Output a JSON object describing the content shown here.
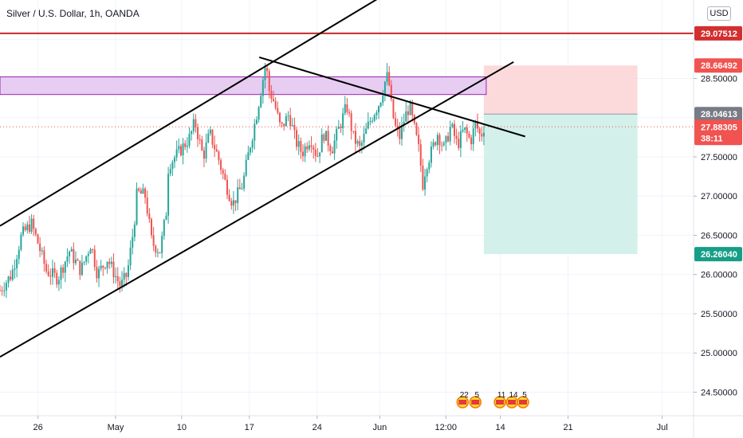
{
  "header": {
    "symbol_title": "Silver / U.S. Dollar, 1h, OANDA",
    "currency": "USD"
  },
  "chart_data": {
    "type": "candlestick",
    "title": "Silver / U.S. Dollar, 1h, OANDA",
    "y_axis": {
      "scale": "linear",
      "range": [
        24.2,
        29.5
      ],
      "ticks": [
        "24.50000",
        "25.00000",
        "25.50000",
        "26.00000",
        "26.50000",
        "27.00000",
        "27.50000",
        "28.50000"
      ],
      "partial_top_tick": "29"
    },
    "x_axis": {
      "range": [
        -1.0,
        41.0
      ],
      "ticks": [
        {
          "label": "26",
          "x": 1.3
        },
        {
          "label": "May",
          "x": 6.0
        },
        {
          "label": "10",
          "x": 10.0
        },
        {
          "label": "17",
          "x": 14.1
        },
        {
          "label": "24",
          "x": 18.2
        },
        {
          "label": "Jun",
          "x": 22.0
        },
        {
          "label": "12:00",
          "x": 26.0
        },
        {
          "label": "14",
          "x": 29.3
        },
        {
          "label": "21",
          "x": 33.4
        },
        {
          "label": "Jul",
          "x": 39.1
        }
      ]
    },
    "price_path": [
      {
        "x": -1.0,
        "y": 25.8
      },
      {
        "x": -0.3,
        "y": 26.0
      },
      {
        "x": 0.3,
        "y": 26.5
      },
      {
        "x": 0.9,
        "y": 26.65
      },
      {
        "x": 1.3,
        "y": 26.4
      },
      {
        "x": 1.8,
        "y": 26.05
      },
      {
        "x": 2.5,
        "y": 25.95
      },
      {
        "x": 3.2,
        "y": 26.3
      },
      {
        "x": 3.9,
        "y": 26.05
      },
      {
        "x": 4.5,
        "y": 26.4
      },
      {
        "x": 4.9,
        "y": 26.0
      },
      {
        "x": 5.5,
        "y": 26.2
      },
      {
        "x": 6.3,
        "y": 25.85
      },
      {
        "x": 6.7,
        "y": 26.0
      },
      {
        "x": 7.1,
        "y": 26.6
      },
      {
        "x": 7.3,
        "y": 27.05
      },
      {
        "x": 7.8,
        "y": 27.0
      },
      {
        "x": 8.2,
        "y": 26.4
      },
      {
        "x": 8.7,
        "y": 26.3
      },
      {
        "x": 9.1,
        "y": 26.85
      },
      {
        "x": 9.2,
        "y": 27.4
      },
      {
        "x": 9.8,
        "y": 27.55
      },
      {
        "x": 10.5,
        "y": 27.75
      },
      {
        "x": 10.8,
        "y": 27.95
      },
      {
        "x": 11.3,
        "y": 27.5
      },
      {
        "x": 11.7,
        "y": 27.8
      },
      {
        "x": 12.2,
        "y": 27.5
      },
      {
        "x": 12.6,
        "y": 27.2
      },
      {
        "x": 13.1,
        "y": 26.9
      },
      {
        "x": 13.7,
        "y": 27.15
      },
      {
        "x": 14.1,
        "y": 27.6
      },
      {
        "x": 14.5,
        "y": 28.0
      },
      {
        "x": 14.8,
        "y": 28.35
      },
      {
        "x": 15.1,
        "y": 28.7
      },
      {
        "x": 15.3,
        "y": 28.35
      },
      {
        "x": 15.6,
        "y": 28.2
      },
      {
        "x": 16.0,
        "y": 27.85
      },
      {
        "x": 16.5,
        "y": 28.05
      },
      {
        "x": 16.9,
        "y": 27.7
      },
      {
        "x": 17.3,
        "y": 27.55
      },
      {
        "x": 17.8,
        "y": 27.75
      },
      {
        "x": 18.2,
        "y": 27.5
      },
      {
        "x": 18.6,
        "y": 27.8
      },
      {
        "x": 19.1,
        "y": 27.6
      },
      {
        "x": 19.5,
        "y": 27.85
      },
      {
        "x": 20.0,
        "y": 28.15
      },
      {
        "x": 20.4,
        "y": 27.75
      },
      {
        "x": 20.8,
        "y": 27.6
      },
      {
        "x": 21.2,
        "y": 27.85
      },
      {
        "x": 21.6,
        "y": 28.05
      },
      {
        "x": 22.0,
        "y": 28.2
      },
      {
        "x": 22.3,
        "y": 28.45
      },
      {
        "x": 22.5,
        "y": 28.55
      },
      {
        "x": 22.7,
        "y": 28.15
      },
      {
        "x": 22.9,
        "y": 27.9
      },
      {
        "x": 23.2,
        "y": 27.75
      },
      {
        "x": 23.5,
        "y": 28.0
      },
      {
        "x": 23.8,
        "y": 28.15
      },
      {
        "x": 24.1,
        "y": 27.85
      },
      {
        "x": 24.4,
        "y": 27.55
      },
      {
        "x": 24.6,
        "y": 27.15
      },
      {
        "x": 24.8,
        "y": 27.4
      },
      {
        "x": 25.1,
        "y": 27.55
      },
      {
        "x": 25.5,
        "y": 27.8
      },
      {
        "x": 25.9,
        "y": 27.6
      },
      {
        "x": 26.3,
        "y": 27.9
      },
      {
        "x": 26.7,
        "y": 27.65
      },
      {
        "x": 27.1,
        "y": 27.85
      },
      {
        "x": 27.5,
        "y": 27.7
      },
      {
        "x": 27.8,
        "y": 27.93
      },
      {
        "x": 28.1,
        "y": 27.75
      },
      {
        "x": 28.3,
        "y": 27.88
      }
    ],
    "pattern_lines": [
      {
        "name": "channel-upper",
        "from": {
          "x": -1.0,
          "y": 26.62
        },
        "to": {
          "x": 25.7,
          "y": 30.0
        }
      },
      {
        "name": "channel-lower",
        "from": {
          "x": -1.0,
          "y": 24.95
        },
        "to": {
          "x": 30.1,
          "y": 28.71
        }
      },
      {
        "name": "descending-trendline",
        "from": {
          "x": 14.7,
          "y": 28.77
        },
        "to": {
          "x": 30.8,
          "y": 27.76
        }
      }
    ],
    "resistance_zone": {
      "y_bottom": 28.295,
      "y_top": 28.52
    },
    "horizontal_level": {
      "y": 29.07512,
      "color": "#c62828"
    },
    "position_tool": {
      "x_start": 28.3,
      "x_end": 37.6,
      "entry": 28.04613,
      "stop": 28.66492,
      "target": 26.2604,
      "risk_color": "#fcd4d6",
      "reward_color": "#cfeee9"
    },
    "current_price": {
      "value": 27.88305,
      "timer": "38:11",
      "color": "#f05350"
    },
    "price_labels": [
      {
        "value": "29.07512",
        "y": 29.07512,
        "color": "#d32f2f"
      },
      {
        "value": "28.66492",
        "y": 28.66492,
        "color": "#f05350"
      },
      {
        "value": "28.04613",
        "y": 28.04613,
        "color": "#787b86"
      },
      {
        "value": "26.26040",
        "y": 26.2604,
        "color": "#169e87"
      }
    ],
    "event_markers": [
      {
        "x": 27.4,
        "label": "22",
        "x_offset": -8
      },
      {
        "x": 27.4,
        "label": "5",
        "x_offset": 8
      },
      {
        "x": 29.9,
        "label": "11",
        "x_offset": -13
      },
      {
        "x": 29.9,
        "label": "14",
        "x_offset": 2
      },
      {
        "x": 29.9,
        "label": "5",
        "x_offset": 16
      }
    ]
  }
}
